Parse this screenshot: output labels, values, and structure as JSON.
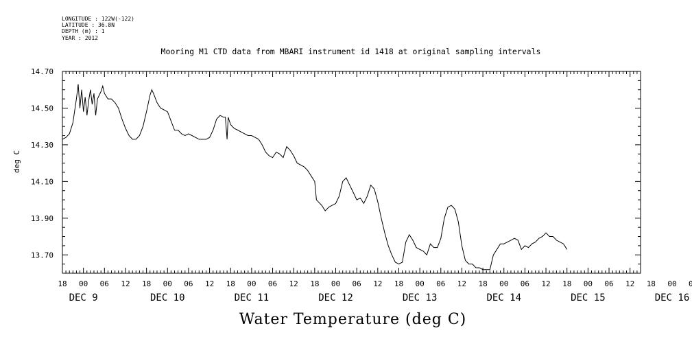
{
  "header": {
    "longitude": "LONGITUDE : 122W(-122)",
    "latitude": "LATITUDE : 36.8N",
    "depth": "DEPTH (m) : 1",
    "year": "YEAR : 2012"
  },
  "chart_data": {
    "type": "line",
    "title": "Mooring M1 CTD data from MBARI instrument id 1418 at original sampling intervals",
    "xlabel": "Water Temperature (deg C)",
    "ylabel": "deg C",
    "ylim": [
      13.6,
      14.7
    ],
    "xlim": [
      -6,
      159
    ],
    "x_units": "hours since Dec 9 00:00 (2012)",
    "grid": false,
    "yticks": [
      "13.70",
      "13.90",
      "14.10",
      "14.30",
      "14.50",
      "14.70"
    ],
    "xtick_hours": [
      "18",
      "00",
      "06",
      "12",
      "18",
      "00",
      "06",
      "12",
      "18",
      "00",
      "06",
      "12",
      "18",
      "00",
      "06",
      "12",
      "18",
      "00",
      "06",
      "12",
      "18",
      "00",
      "06",
      "12",
      "18",
      "00",
      "06",
      "12",
      "18",
      "00",
      "06",
      "12",
      "18",
      "00",
      "06",
      "12",
      "18",
      "00",
      "06",
      "12"
    ],
    "day_labels": [
      "DEC 9",
      "DEC 10",
      "DEC 11",
      "DEC 12",
      "DEC 13",
      "DEC 14",
      "DEC 15",
      "DEC 16"
    ],
    "series": [
      {
        "points": [
          [
            -6,
            14.33
          ],
          [
            -5,
            14.34
          ],
          [
            -4,
            14.36
          ],
          [
            -3,
            14.42
          ],
          [
            -2,
            14.55
          ],
          [
            -1.5,
            14.63
          ],
          [
            -1,
            14.5
          ],
          [
            -0.5,
            14.6
          ],
          [
            0,
            14.48
          ],
          [
            0.5,
            14.56
          ],
          [
            1,
            14.46
          ],
          [
            1.5,
            14.54
          ],
          [
            2,
            14.6
          ],
          [
            2.5,
            14.52
          ],
          [
            3,
            14.58
          ],
          [
            3.5,
            14.46
          ],
          [
            4,
            14.55
          ],
          [
            5,
            14.59
          ],
          [
            5.5,
            14.62
          ],
          [
            6,
            14.58
          ],
          [
            7,
            14.55
          ],
          [
            8,
            14.55
          ],
          [
            9,
            14.53
          ],
          [
            10,
            14.5
          ],
          [
            11,
            14.44
          ],
          [
            12,
            14.39
          ],
          [
            13,
            14.35
          ],
          [
            14,
            14.33
          ],
          [
            15,
            14.33
          ],
          [
            16,
            14.35
          ],
          [
            17,
            14.4
          ],
          [
            18,
            14.48
          ],
          [
            19,
            14.57
          ],
          [
            19.5,
            14.6
          ],
          [
            20,
            14.58
          ],
          [
            21,
            14.53
          ],
          [
            22,
            14.5
          ],
          [
            23,
            14.49
          ],
          [
            24,
            14.48
          ],
          [
            25,
            14.43
          ],
          [
            26,
            14.38
          ],
          [
            27,
            14.38
          ],
          [
            28,
            14.36
          ],
          [
            29,
            14.35
          ],
          [
            30,
            14.36
          ],
          [
            31,
            14.35
          ],
          [
            32,
            14.34
          ],
          [
            33,
            14.33
          ],
          [
            34,
            14.33
          ],
          [
            35,
            14.33
          ],
          [
            36,
            14.34
          ],
          [
            37,
            14.38
          ],
          [
            38,
            14.44
          ],
          [
            39,
            14.46
          ],
          [
            40,
            14.45
          ],
          [
            40.5,
            14.45
          ],
          [
            41,
            14.33
          ],
          [
            41.3,
            14.45
          ],
          [
            42,
            14.41
          ],
          [
            43,
            14.39
          ],
          [
            44,
            14.38
          ],
          [
            45,
            14.37
          ],
          [
            46,
            14.36
          ],
          [
            47,
            14.35
          ],
          [
            48,
            14.35
          ],
          [
            49,
            14.34
          ],
          [
            50,
            14.33
          ],
          [
            51,
            14.3
          ],
          [
            52,
            14.26
          ],
          [
            53,
            14.24
          ],
          [
            54,
            14.23
          ],
          [
            55,
            14.26
          ],
          [
            56,
            14.25
          ],
          [
            57,
            14.23
          ],
          [
            58,
            14.29
          ],
          [
            59,
            14.27
          ],
          [
            60,
            14.24
          ],
          [
            61,
            14.2
          ],
          [
            62,
            14.19
          ],
          [
            63,
            14.18
          ],
          [
            64,
            14.16
          ],
          [
            65,
            14.13
          ],
          [
            66,
            14.1
          ],
          [
            66.5,
            14.0
          ],
          [
            67,
            13.99
          ],
          [
            68,
            13.97
          ],
          [
            69,
            13.94
          ],
          [
            70,
            13.96
          ],
          [
            71,
            13.97
          ],
          [
            72,
            13.98
          ],
          [
            73,
            14.02
          ],
          [
            74,
            14.1
          ],
          [
            75,
            14.12
          ],
          [
            76,
            14.08
          ],
          [
            77,
            14.04
          ],
          [
            78,
            14.0
          ],
          [
            79,
            14.01
          ],
          [
            80,
            13.98
          ],
          [
            81,
            14.02
          ],
          [
            82,
            14.08
          ],
          [
            83,
            14.06
          ],
          [
            84,
            13.99
          ],
          [
            85,
            13.9
          ],
          [
            86,
            13.82
          ],
          [
            87,
            13.75
          ],
          [
            88,
            13.7
          ],
          [
            89,
            13.66
          ],
          [
            90,
            13.65
          ],
          [
            91,
            13.66
          ],
          [
            92,
            13.77
          ],
          [
            93,
            13.81
          ],
          [
            94,
            13.78
          ],
          [
            95,
            13.74
          ],
          [
            96,
            13.73
          ],
          [
            97,
            13.72
          ],
          [
            98,
            13.7
          ],
          [
            99,
            13.76
          ],
          [
            100,
            13.74
          ],
          [
            101,
            13.74
          ],
          [
            102,
            13.79
          ],
          [
            103,
            13.9
          ],
          [
            104,
            13.96
          ],
          [
            105,
            13.97
          ],
          [
            106,
            13.95
          ],
          [
            107,
            13.88
          ],
          [
            108,
            13.75
          ],
          [
            109,
            13.67
          ],
          [
            110,
            13.65
          ],
          [
            111,
            13.65
          ],
          [
            112,
            13.63
          ],
          [
            113,
            13.63
          ],
          [
            114,
            13.62
          ],
          [
            115,
            13.62
          ],
          [
            116,
            13.62
          ],
          [
            117,
            13.7
          ],
          [
            118,
            13.73
          ],
          [
            119,
            13.76
          ],
          [
            120,
            13.76
          ],
          [
            121,
            13.77
          ],
          [
            122,
            13.78
          ],
          [
            123,
            13.79
          ],
          [
            124,
            13.78
          ],
          [
            125,
            13.73
          ],
          [
            126,
            13.75
          ],
          [
            127,
            13.74
          ],
          [
            128,
            13.76
          ],
          [
            129,
            13.77
          ],
          [
            130,
            13.79
          ],
          [
            131,
            13.8
          ],
          [
            132,
            13.82
          ],
          [
            133,
            13.8
          ],
          [
            134,
            13.8
          ],
          [
            135,
            13.78
          ],
          [
            136,
            13.77
          ],
          [
            137,
            13.76
          ],
          [
            138,
            13.73
          ]
        ]
      }
    ]
  }
}
